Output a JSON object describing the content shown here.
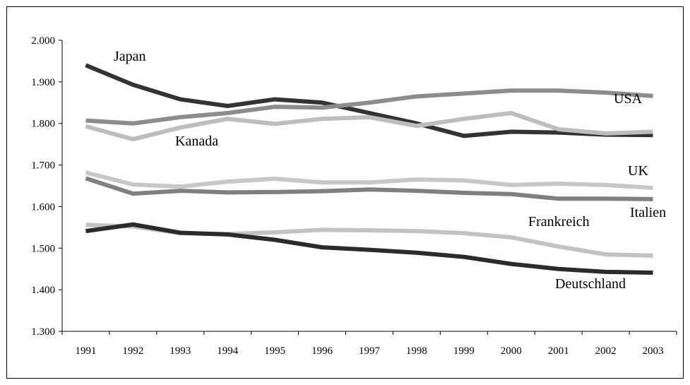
{
  "chart_data": {
    "type": "line",
    "title": "",
    "xlabel": "",
    "ylabel": "",
    "x": [
      "1991",
      "1992",
      "1993",
      "1994",
      "1995",
      "1996",
      "1997",
      "1998",
      "1999",
      "2000",
      "2001",
      "2002",
      "2003"
    ],
    "ylim": [
      1300,
      2000
    ],
    "yticks": [
      "1.300",
      "1.400",
      "1.500",
      "1.600",
      "1.700",
      "1.800",
      "1.900",
      "2.000"
    ],
    "grid": false,
    "legend": "none",
    "series": [
      {
        "name": "Japan",
        "color": "#333333",
        "values": [
          1940,
          1893,
          1858,
          1842,
          1858,
          1850,
          1825,
          1800,
          1770,
          1780,
          1778,
          1773,
          1772
        ]
      },
      {
        "name": "USA",
        "color": "#8c8c8c",
        "values": [
          1807,
          1800,
          1815,
          1825,
          1840,
          1838,
          1850,
          1865,
          1872,
          1879,
          1879,
          1874,
          1866
        ]
      },
      {
        "name": "Kanada",
        "color": "#bdbdbd",
        "values": [
          1793,
          1762,
          1790,
          1811,
          1799,
          1811,
          1815,
          1794,
          1811,
          1825,
          1786,
          1776,
          1780
        ]
      },
      {
        "name": "UK",
        "color": "#c7c7c7",
        "values": [
          1682,
          1653,
          1648,
          1660,
          1667,
          1658,
          1658,
          1665,
          1663,
          1652,
          1655,
          1652,
          1645
        ]
      },
      {
        "name": "Italien",
        "color": "#7f7f7f",
        "values": [
          1668,
          1631,
          1638,
          1634,
          1635,
          1637,
          1641,
          1638,
          1633,
          1630,
          1619,
          1619,
          1618
        ]
      },
      {
        "name": "Frankreich",
        "color": "#c2c2c2",
        "values": [
          1556,
          1552,
          1536,
          1534,
          1538,
          1544,
          1543,
          1541,
          1536,
          1526,
          1504,
          1485,
          1482
        ]
      },
      {
        "name": "Deutschland",
        "color": "#2b2b2b",
        "values": [
          1541,
          1557,
          1537,
          1533,
          1520,
          1502,
          1496,
          1489,
          1479,
          1462,
          1450,
          1443,
          1441
        ]
      }
    ]
  }
}
